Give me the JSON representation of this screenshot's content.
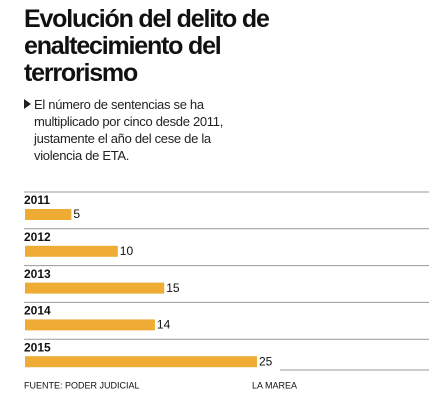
{
  "chart_data": {
    "type": "hbar",
    "title": "Evolución del delito de enaltecimiento del terrorismo",
    "subtitle": "El número de sentencias se ha multiplicado por cinco desde 2011, justamente el año del cese de la violencia de ETA.",
    "categories": [
      "2011",
      "2012",
      "2013",
      "2014",
      "2015"
    ],
    "values": [
      5,
      10,
      15,
      14,
      25
    ],
    "color": "#efac35",
    "source": "FUENTE: PODER JUDICIAL",
    "credit": "LA MAREA"
  }
}
